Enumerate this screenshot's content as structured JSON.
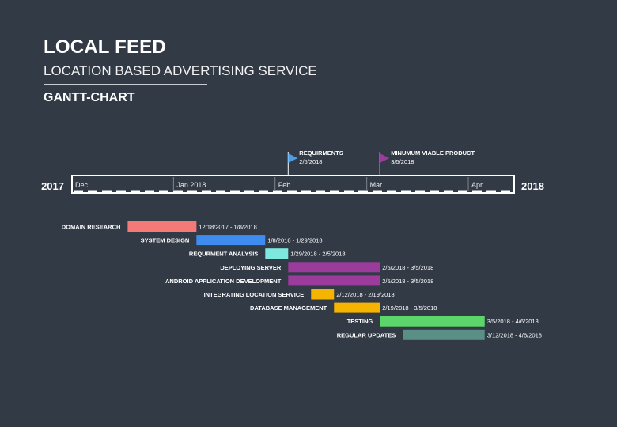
{
  "header": {
    "title": "LOCAL FEED",
    "subtitle": "LOCATION BASED ADVERTISING SERVICE",
    "chart_label": "GANTT-CHART"
  },
  "timeline": {
    "start_year": "2017",
    "end_year": "2018",
    "month_labels": [
      {
        "label": "Dec",
        "date": "2017-12-01"
      },
      {
        "label": "Jan 2018",
        "date": "2018-01-01"
      },
      {
        "label": "Feb",
        "date": "2018-02-01"
      },
      {
        "label": "Mar",
        "date": "2018-03-01"
      },
      {
        "label": "Apr",
        "date": "2018-04-01"
      }
    ],
    "milestones": [
      {
        "name": "REQUIRMENTS",
        "date_label": "2/5/2018",
        "date": "2018-02-05",
        "color": "#4a9ee8"
      },
      {
        "name": "MINUMUM VIABLE PRODUCT",
        "date_label": "3/5/2018",
        "date": "2018-03-05",
        "color": "#9b3b9c"
      }
    ]
  },
  "chart_data": {
    "type": "gantt",
    "x_range": [
      "2017-12-01",
      "2018-04-15"
    ],
    "tasks": [
      {
        "name": "DOMAIN RESEARCH",
        "start": "2017-12-18",
        "end": "2018-01-08",
        "range_label": "12/18/2017 - 1/8/2018",
        "color": "#f47a78"
      },
      {
        "name": "SYSTEM DESIGN",
        "start": "2018-01-08",
        "end": "2018-01-29",
        "range_label": "1/8/2018 - 1/29/2018",
        "color": "#3f8cf0"
      },
      {
        "name": "REQURMENT ANALYSIS",
        "start": "2018-01-29",
        "end": "2018-02-05",
        "range_label": "1/29/2018 - 2/5/2018",
        "color": "#7fe8de"
      },
      {
        "name": "DEPLOYING SERVER",
        "start": "2018-02-05",
        "end": "2018-03-05",
        "range_label": "2/5/2018 - 3/5/2018",
        "color": "#9b3b9c"
      },
      {
        "name": "ANDROID APPLICATION DEVELOPMENT",
        "start": "2018-02-05",
        "end": "2018-03-05",
        "range_label": "2/5/2018 - 3/5/2018",
        "color": "#9b3b9c"
      },
      {
        "name": "INTEGRATING LOCATION SERVICE",
        "start": "2018-02-12",
        "end": "2018-02-19",
        "range_label": "2/12/2018 - 2/19/2018",
        "color": "#f5b400"
      },
      {
        "name": "DATABASE MANAGEMENT",
        "start": "2018-02-19",
        "end": "2018-03-05",
        "range_label": "2/19/2018 - 3/5/2018",
        "color": "#f5b400"
      },
      {
        "name": "TESTING",
        "start": "2018-03-05",
        "end": "2018-04-06",
        "range_label": "3/5/2018 - 4/6/2018",
        "color": "#5cd66a"
      },
      {
        "name": "REGULAR UPDATES",
        "start": "2018-03-12",
        "end": "2018-04-06",
        "range_label": "3/12/2018 - 4/6/2018",
        "color": "#5a8f86"
      }
    ]
  }
}
